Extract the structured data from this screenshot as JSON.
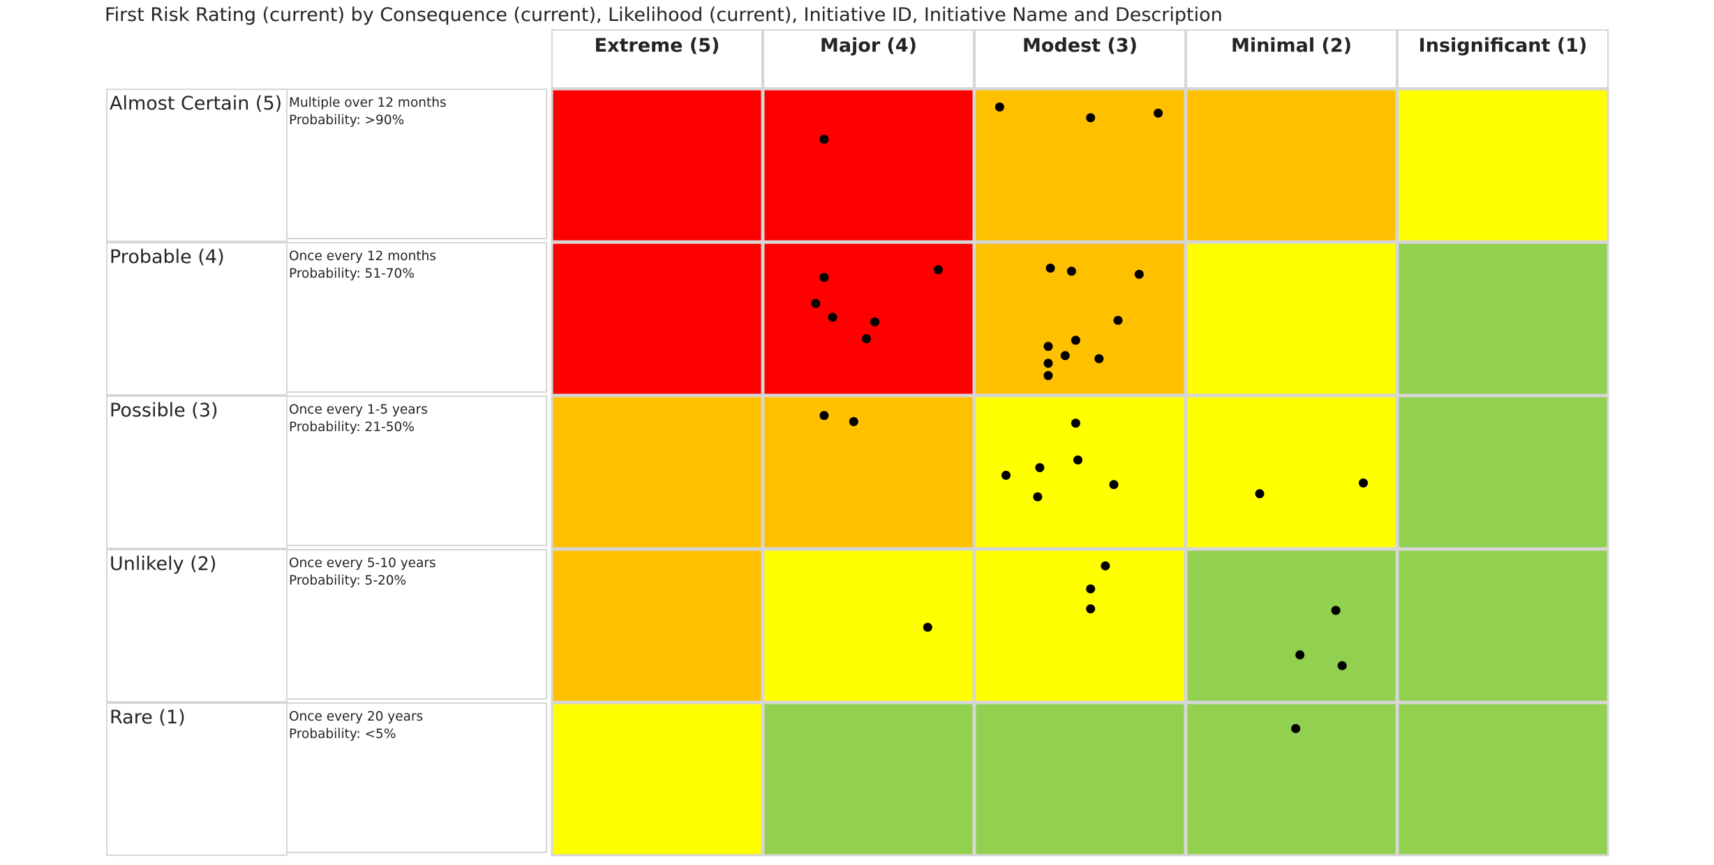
{
  "chart_data": {
    "type": "scatter",
    "title": "First Risk Rating (current) by Consequence (current), Likelihood (current), Initiative ID, Initiative Name and Description",
    "columns": [
      "Extreme (5)",
      "Major (4)",
      "Modest (3)",
      "Minimal (2)",
      "Insignificant (1)"
    ],
    "rows": [
      {
        "label": "Almost Certain (5)",
        "desc1": "Multiple over 12 months",
        "desc2": "Probability: >90%"
      },
      {
        "label": "Probable (4)",
        "desc1": "Once every 12 months",
        "desc2": "Probability: 51-70%"
      },
      {
        "label": "Possible (3)",
        "desc1": "Once every 1-5 years",
        "desc2": "Probability: 21-50%"
      },
      {
        "label": "Unlikely (2)",
        "desc1": "Once every 5-10 years",
        "desc2": "Probability: 5-20%"
      },
      {
        "label": "Rare (1)",
        "desc1": "Once every 20 years",
        "desc2": "Probability: <5%"
      }
    ],
    "cell_colors": [
      [
        "#ff0000",
        "#ff0000",
        "#ffc000",
        "#ffc000",
        "#ffff00"
      ],
      [
        "#ff0000",
        "#ff0000",
        "#ffc000",
        "#ffff00",
        "#92d050"
      ],
      [
        "#ffc000",
        "#ffc000",
        "#ffff00",
        "#ffff00",
        "#92d050"
      ],
      [
        "#ffc000",
        "#ffff00",
        "#ffff00",
        "#92d050",
        "#92d050"
      ],
      [
        "#ffff00",
        "#92d050",
        "#92d050",
        "#92d050",
        "#92d050"
      ]
    ],
    "points": [
      {
        "row": 0,
        "col": 1,
        "fx": 0.29,
        "fy": 0.33
      },
      {
        "row": 0,
        "col": 2,
        "fx": 0.12,
        "fy": 0.12
      },
      {
        "row": 0,
        "col": 2,
        "fx": 0.55,
        "fy": 0.19
      },
      {
        "row": 0,
        "col": 2,
        "fx": 0.87,
        "fy": 0.16
      },
      {
        "row": 1,
        "col": 1,
        "fx": 0.29,
        "fy": 0.23
      },
      {
        "row": 1,
        "col": 1,
        "fx": 0.83,
        "fy": 0.18
      },
      {
        "row": 1,
        "col": 1,
        "fx": 0.25,
        "fy": 0.4
      },
      {
        "row": 1,
        "col": 1,
        "fx": 0.33,
        "fy": 0.49
      },
      {
        "row": 1,
        "col": 1,
        "fx": 0.53,
        "fy": 0.52
      },
      {
        "row": 1,
        "col": 1,
        "fx": 0.49,
        "fy": 0.63
      },
      {
        "row": 1,
        "col": 2,
        "fx": 0.36,
        "fy": 0.17
      },
      {
        "row": 1,
        "col": 2,
        "fx": 0.46,
        "fy": 0.19
      },
      {
        "row": 1,
        "col": 2,
        "fx": 0.78,
        "fy": 0.21
      },
      {
        "row": 1,
        "col": 2,
        "fx": 0.68,
        "fy": 0.51
      },
      {
        "row": 1,
        "col": 2,
        "fx": 0.48,
        "fy": 0.64
      },
      {
        "row": 1,
        "col": 2,
        "fx": 0.35,
        "fy": 0.68
      },
      {
        "row": 1,
        "col": 2,
        "fx": 0.43,
        "fy": 0.74
      },
      {
        "row": 1,
        "col": 2,
        "fx": 0.59,
        "fy": 0.76
      },
      {
        "row": 1,
        "col": 2,
        "fx": 0.35,
        "fy": 0.79
      },
      {
        "row": 1,
        "col": 2,
        "fx": 0.35,
        "fy": 0.87
      },
      {
        "row": 2,
        "col": 1,
        "fx": 0.29,
        "fy": 0.13
      },
      {
        "row": 2,
        "col": 1,
        "fx": 0.43,
        "fy": 0.17
      },
      {
        "row": 2,
        "col": 2,
        "fx": 0.48,
        "fy": 0.18
      },
      {
        "row": 2,
        "col": 2,
        "fx": 0.49,
        "fy": 0.42
      },
      {
        "row": 2,
        "col": 2,
        "fx": 0.31,
        "fy": 0.47
      },
      {
        "row": 2,
        "col": 2,
        "fx": 0.15,
        "fy": 0.52
      },
      {
        "row": 2,
        "col": 2,
        "fx": 0.66,
        "fy": 0.58
      },
      {
        "row": 2,
        "col": 2,
        "fx": 0.3,
        "fy": 0.66
      },
      {
        "row": 2,
        "col": 3,
        "fx": 0.35,
        "fy": 0.64
      },
      {
        "row": 2,
        "col": 3,
        "fx": 0.84,
        "fy": 0.57
      },
      {
        "row": 3,
        "col": 1,
        "fx": 0.78,
        "fy": 0.51
      },
      {
        "row": 3,
        "col": 2,
        "fx": 0.62,
        "fy": 0.11
      },
      {
        "row": 3,
        "col": 2,
        "fx": 0.55,
        "fy": 0.26
      },
      {
        "row": 3,
        "col": 2,
        "fx": 0.55,
        "fy": 0.39
      },
      {
        "row": 3,
        "col": 3,
        "fx": 0.71,
        "fy": 0.4
      },
      {
        "row": 3,
        "col": 3,
        "fx": 0.54,
        "fy": 0.69
      },
      {
        "row": 3,
        "col": 3,
        "fx": 0.74,
        "fy": 0.76
      },
      {
        "row": 4,
        "col": 3,
        "fx": 0.52,
        "fy": 0.17
      }
    ]
  }
}
